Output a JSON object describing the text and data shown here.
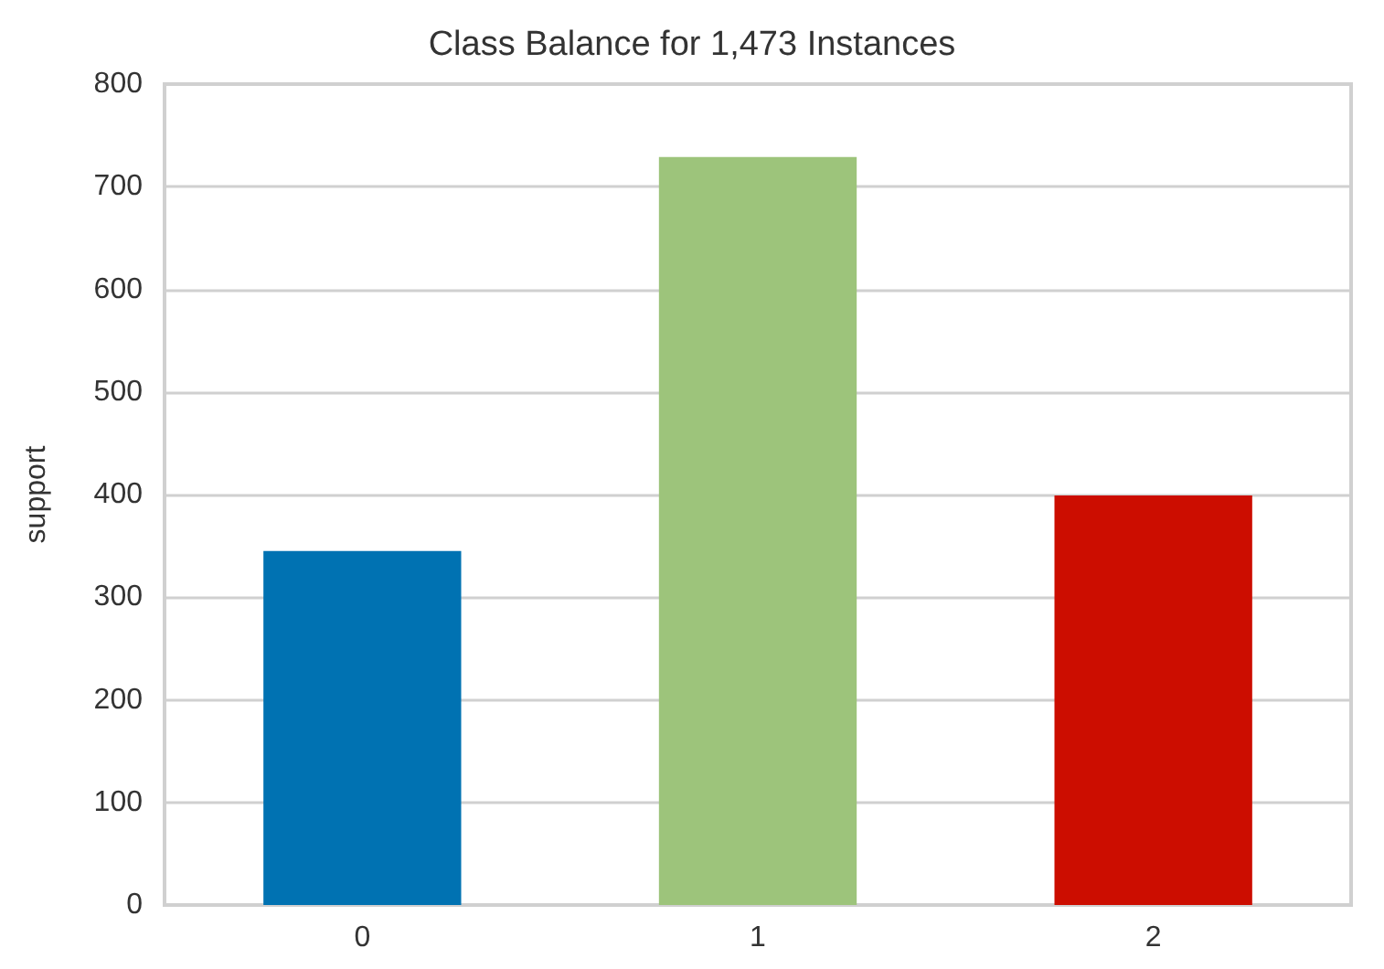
{
  "chart_data": {
    "type": "bar",
    "title": "Class Balance for 1,473 Instances",
    "ylabel": "support",
    "categories": [
      "0",
      "1",
      "2"
    ],
    "values": [
      345,
      729,
      399
    ],
    "colors": [
      "#0072b2",
      "#9dc47b",
      "#cc0d00"
    ],
    "ylim": [
      0,
      800
    ],
    "yticks": [
      0,
      100,
      200,
      300,
      400,
      500,
      600,
      700,
      800
    ],
    "grid": "y"
  }
}
